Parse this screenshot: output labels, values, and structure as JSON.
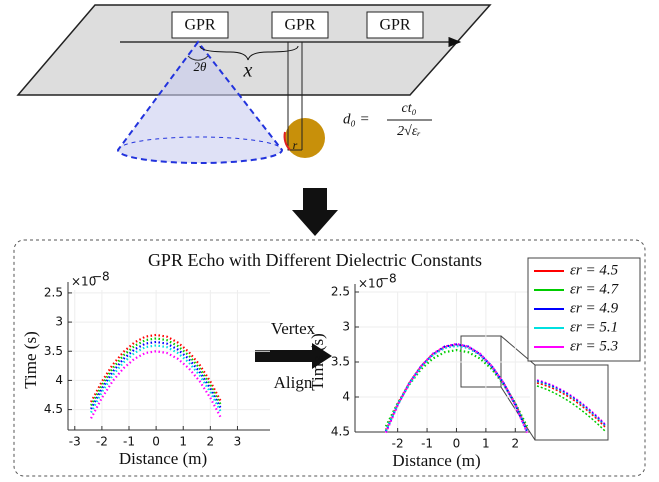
{
  "diagram": {
    "gpr_labels": [
      "GPR",
      "GPR",
      "GPR"
    ],
    "angle_label": "2θ",
    "x_label": "x",
    "r_label": "r",
    "formula": {
      "lhs": "d₀ =",
      "numerator": "ct₀",
      "denominator": "2√εᵣ"
    }
  },
  "panel_title": "GPR Echo with Different Dielectric Constants",
  "arrow_labels": [
    "Vertex",
    "Align"
  ],
  "chart_data": [
    {
      "type": "line",
      "line_style": "dotted",
      "x_label": "Distance (m)",
      "y_label": "Time (s)",
      "y_scale_label": {
        "base": "×10",
        "exponent": "−8"
      },
      "xlim": [
        -3.25,
        4.2
      ],
      "xticks": [
        -3,
        -2,
        -1,
        0,
        1,
        2,
        3
      ],
      "ylim": [
        2.45,
        4.85
      ],
      "yticks": [
        2.5,
        3,
        3.5,
        4,
        4.5
      ],
      "y_inverted": true,
      "grid": true,
      "x": [
        -2.4,
        -2,
        -1.6,
        -1.2,
        -0.8,
        -0.4,
        0,
        0.4,
        0.8,
        1.2,
        1.6,
        2,
        2.4
      ],
      "series": [
        {
          "color": "#ff0000",
          "values": [
            4.37,
            4.02,
            3.73,
            3.51,
            3.35,
            3.25,
            3.22,
            3.25,
            3.35,
            3.51,
            3.73,
            4.02,
            4.37
          ]
        },
        {
          "color": "#00cc00",
          "values": [
            4.43,
            4.08,
            3.79,
            3.57,
            3.41,
            3.31,
            3.28,
            3.31,
            3.41,
            3.57,
            3.79,
            4.08,
            4.43
          ]
        },
        {
          "color": "#0000ff",
          "values": [
            4.49,
            4.14,
            3.85,
            3.63,
            3.47,
            3.37,
            3.34,
            3.37,
            3.47,
            3.63,
            3.85,
            4.14,
            4.49
          ]
        },
        {
          "color": "#00e0e0",
          "values": [
            4.55,
            4.2,
            3.91,
            3.69,
            3.53,
            3.43,
            3.4,
            3.43,
            3.53,
            3.69,
            3.91,
            4.2,
            4.55
          ]
        },
        {
          "color": "#ff00ff",
          "values": [
            4.65,
            4.3,
            4.01,
            3.79,
            3.63,
            3.53,
            3.5,
            3.53,
            3.63,
            3.79,
            4.01,
            4.3,
            4.65
          ]
        }
      ]
    },
    {
      "type": "line",
      "line_style": "dotted",
      "x_label": "Distance (m)",
      "y_label": "Time (s)",
      "y_scale_label": {
        "base": "×10",
        "exponent": "−8"
      },
      "xlim": [
        -3.45,
        2.5
      ],
      "xticks": [
        -2,
        -1,
        0,
        1,
        2
      ],
      "ylim": [
        2.5,
        4.5
      ],
      "yticks": [
        2.5,
        3,
        3.5,
        4,
        4.5
      ],
      "y_inverted": true,
      "grid": true,
      "legend": "upper right",
      "x": [
        -2.4,
        -2,
        -1.6,
        -1.2,
        -0.8,
        -0.4,
        0,
        0.4,
        0.8,
        1.2,
        1.6,
        2,
        2.4
      ],
      "series": [
        {
          "name": "εr = 4.5",
          "color": "#ff0000",
          "values": [
            4.47,
            4.1,
            3.8,
            3.56,
            3.39,
            3.29,
            3.26,
            3.29,
            3.39,
            3.56,
            3.8,
            4.1,
            4.47
          ]
        },
        {
          "name": "εr = 4.7",
          "color": "#00cc00",
          "values": [
            4.42,
            4.09,
            3.82,
            3.6,
            3.45,
            3.36,
            3.33,
            3.36,
            3.45,
            3.6,
            3.82,
            4.09,
            4.42
          ]
        },
        {
          "name": "εr = 4.9",
          "color": "#0000ff",
          "values": [
            4.49,
            4.11,
            3.8,
            3.56,
            3.39,
            3.28,
            3.25,
            3.28,
            3.39,
            3.56,
            3.8,
            4.11,
            4.49
          ]
        },
        {
          "name": "εr = 5.1",
          "color": "#00e0e0",
          "values": [
            4.48,
            4.11,
            3.81,
            3.57,
            3.4,
            3.3,
            3.27,
            3.3,
            3.4,
            3.57,
            3.81,
            4.11,
            4.48
          ]
        },
        {
          "name": "εr = 5.3",
          "color": "#ff00ff",
          "values": [
            4.51,
            4.12,
            3.8,
            3.56,
            3.38,
            3.28,
            3.24,
            3.28,
            3.38,
            3.56,
            3.8,
            4.12,
            4.51
          ]
        }
      ]
    }
  ]
}
